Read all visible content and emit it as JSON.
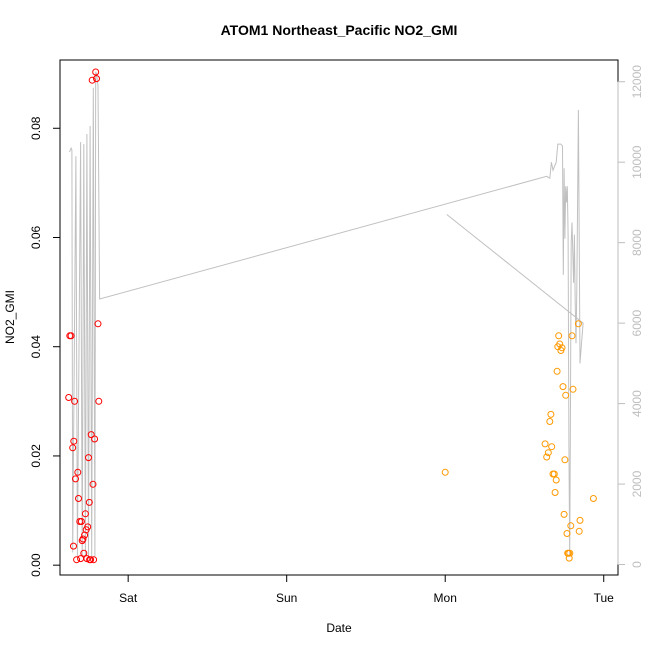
{
  "chart_data": {
    "type": "scatter",
    "title": "ATOM1 Northeast_Pacific NO2_GMI",
    "xlabel": "Date",
    "ylabel": "NO2_GMI",
    "x_ticks": [
      {
        "label": "Sat",
        "value": 0
      },
      {
        "label": "Sun",
        "value": 1
      },
      {
        "label": "Mon",
        "value": 2
      },
      {
        "label": "Tue",
        "value": 3
      }
    ],
    "xlim": [
      -0.43,
      3.09
    ],
    "ylim": [
      -0.0018,
      0.0925
    ],
    "y_ticks": [
      "0.00",
      "0.02",
      "0.04",
      "0.06",
      "0.08"
    ],
    "y2lim": [
      -260,
      12540
    ],
    "y2_ticks": [
      "0",
      "2000",
      "4000",
      "6000",
      "8000",
      "10000",
      "12000"
    ],
    "colors": {
      "series_red": "#ff0000",
      "series_orange": "#ff9900",
      "altitude_line": "#c0c0c0",
      "axis": "#000000",
      "right_axis": "#bebebe"
    },
    "series": [
      {
        "name": "red",
        "color": "#ff0000",
        "points": [
          [
            -0.375,
            0.0307
          ],
          [
            -0.368,
            0.042
          ],
          [
            -0.36,
            0.042
          ],
          [
            -0.35,
            0.0215
          ],
          [
            -0.345,
            0.0035
          ],
          [
            -0.343,
            0.0227
          ],
          [
            -0.338,
            0.03
          ],
          [
            -0.332,
            0.0158
          ],
          [
            -0.325,
            0.001
          ],
          [
            -0.318,
            0.017
          ],
          [
            -0.313,
            0.0122
          ],
          [
            -0.305,
            0.008
          ],
          [
            -0.3,
            0.0012
          ],
          [
            -0.295,
            0.008
          ],
          [
            -0.29,
            0.0045
          ],
          [
            -0.285,
            0.0048
          ],
          [
            -0.28,
            0.0022
          ],
          [
            -0.275,
            0.0055
          ],
          [
            -0.27,
            0.0094
          ],
          [
            -0.265,
            0.0065
          ],
          [
            -0.26,
            0.0012
          ],
          [
            -0.255,
            0.007
          ],
          [
            -0.25,
            0.0197
          ],
          [
            -0.245,
            0.0115
          ],
          [
            -0.243,
            0.001
          ],
          [
            -0.237,
            0.001
          ],
          [
            -0.233,
            0.0239
          ],
          [
            -0.227,
            0.0888
          ],
          [
            -0.222,
            0.0148
          ],
          [
            -0.218,
            0.001
          ],
          [
            -0.212,
            0.0231
          ],
          [
            -0.205,
            0.0903
          ],
          [
            -0.2,
            0.0891
          ],
          [
            -0.19,
            0.0442
          ],
          [
            -0.185,
            0.03
          ]
        ]
      },
      {
        "name": "orange",
        "color": "#ff9900",
        "points": [
          [
            2.0,
            0.017
          ],
          [
            2.63,
            0.0222
          ],
          [
            2.64,
            0.0198
          ],
          [
            2.65,
            0.0206
          ],
          [
            2.66,
            0.0263
          ],
          [
            2.667,
            0.0276
          ],
          [
            2.672,
            0.0217
          ],
          [
            2.68,
            0.0167
          ],
          [
            2.688,
            0.0167
          ],
          [
            2.693,
            0.0133
          ],
          [
            2.7,
            0.0156
          ],
          [
            2.706,
            0.0355
          ],
          [
            2.71,
            0.04
          ],
          [
            2.716,
            0.042
          ],
          [
            2.722,
            0.0405
          ],
          [
            2.73,
            0.0393
          ],
          [
            2.737,
            0.0398
          ],
          [
            2.743,
            0.0327
          ],
          [
            2.75,
            0.0093
          ],
          [
            2.755,
            0.0193
          ],
          [
            2.76,
            0.0311
          ],
          [
            2.768,
            0.0058
          ],
          [
            2.773,
            0.0022
          ],
          [
            2.778,
            0.0022
          ],
          [
            2.782,
            0.0013
          ],
          [
            2.786,
            0.0022
          ],
          [
            2.792,
            0.0072
          ],
          [
            2.8,
            0.042
          ],
          [
            2.806,
            0.0322
          ],
          [
            2.84,
            0.0442
          ],
          [
            2.845,
            0.0062
          ],
          [
            2.85,
            0.0082
          ],
          [
            2.935,
            0.0122
          ]
        ]
      }
    ],
    "altitude_line": {
      "axis": "right",
      "points": [
        [
          -0.37,
          10250
        ],
        [
          -0.36,
          10350
        ],
        [
          -0.355,
          10300
        ],
        [
          -0.35,
          300
        ],
        [
          -0.33,
          10150
        ],
        [
          -0.32,
          200
        ],
        [
          -0.3,
          10500
        ],
        [
          -0.29,
          200
        ],
        [
          -0.28,
          10450
        ],
        [
          -0.27,
          200
        ],
        [
          -0.26,
          10700
        ],
        [
          -0.25,
          200
        ],
        [
          -0.24,
          10900
        ],
        [
          -0.23,
          200
        ],
        [
          -0.22,
          11850
        ],
        [
          -0.21,
          200
        ],
        [
          -0.205,
          12250
        ],
        [
          -0.2,
          12200
        ],
        [
          -0.19,
          11900
        ],
        [
          -0.18,
          6600
        ],
        [
          2.64,
          9650
        ],
        [
          2.66,
          9600
        ],
        [
          2.67,
          10000
        ],
        [
          2.68,
          9800
        ],
        [
          2.7,
          10000
        ],
        [
          2.71,
          10450
        ],
        [
          2.73,
          10450
        ],
        [
          2.74,
          10400
        ],
        [
          2.745,
          7200
        ],
        [
          2.75,
          9850
        ],
        [
          2.755,
          8100
        ],
        [
          2.76,
          9400
        ],
        [
          2.765,
          9000
        ],
        [
          2.77,
          9400
        ],
        [
          2.775,
          8200
        ],
        [
          2.78,
          3000
        ],
        [
          2.785,
          200
        ],
        [
          2.79,
          3500
        ],
        [
          2.795,
          8000
        ],
        [
          2.8,
          8500
        ],
        [
          2.81,
          7000
        ],
        [
          2.815,
          8200
        ],
        [
          2.82,
          6500
        ],
        [
          2.825,
          5500
        ],
        [
          2.83,
          6800
        ],
        [
          2.84,
          11300
        ],
        [
          2.85,
          5000
        ],
        [
          2.86,
          5500
        ],
        [
          2.87,
          6000
        ],
        [
          2.01,
          8700
        ]
      ]
    }
  }
}
